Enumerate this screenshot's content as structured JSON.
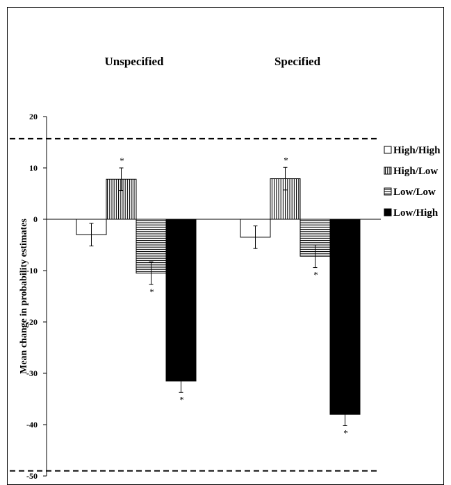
{
  "chart_data": {
    "type": "bar",
    "categories": [
      "Unspecified",
      "Specified"
    ],
    "series": [
      {
        "name": "High/High",
        "values": [
          -3,
          -3.5
        ],
        "errors": [
          2.2,
          2.2
        ],
        "significant": [
          false,
          false
        ],
        "fill": "#ffffff",
        "pattern": "none"
      },
      {
        "name": "High/Low",
        "values": [
          7.8,
          7.9
        ],
        "errors": [
          2.2,
          2.2
        ],
        "significant": [
          true,
          true
        ],
        "fill": "#ffffff",
        "pattern": "vertical"
      },
      {
        "name": "Low/Low",
        "values": [
          -10.5,
          -7.2
        ],
        "errors": [
          2.2,
          2.2
        ],
        "significant": [
          true,
          true
        ],
        "fill": "#ffffff",
        "pattern": "horizontal"
      },
      {
        "name": "Low/High",
        "values": [
          -31.5,
          -38
        ],
        "errors": [
          2.2,
          2.2
        ],
        "significant": [
          true,
          true
        ],
        "fill": "#000000",
        "pattern": "solid"
      }
    ],
    "significance_marker": "*",
    "title": "",
    "xlabel": "",
    "ylabel": "Mean change in probability estimates",
    "ylim": [
      -50,
      20
    ],
    "yticks": [
      "20",
      "10",
      "0",
      "-10",
      "-20",
      "-30",
      "-40",
      "-50"
    ],
    "reference_lines": [
      {
        "y": 15.7,
        "style": "dashed"
      },
      {
        "y": -49,
        "style": "dashed"
      }
    ],
    "legend_position": "right",
    "grid": false
  }
}
